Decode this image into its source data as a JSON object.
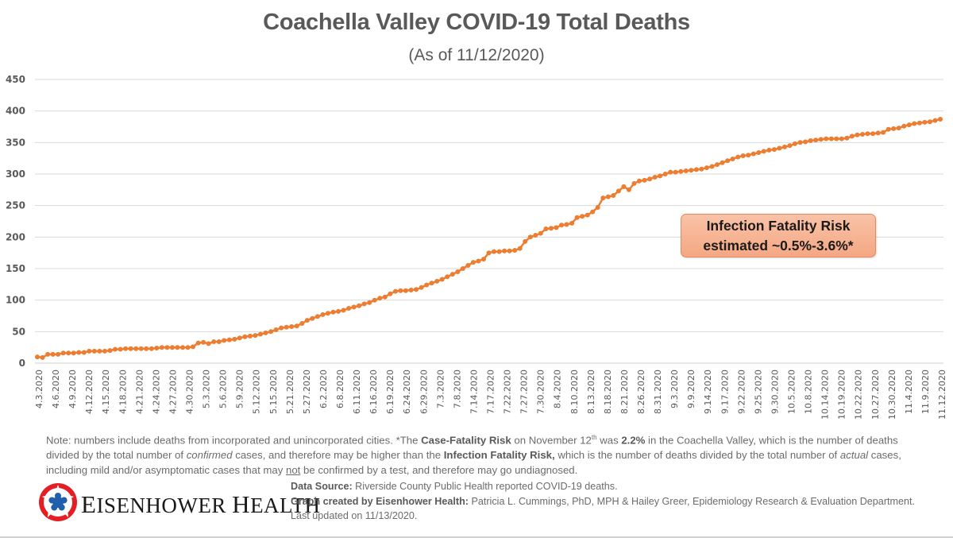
{
  "title": "Coachella Valley COVID-19 Total Deaths",
  "subtitle": "(As of 11/12/2020)",
  "annotation": {
    "line1": "Infection Fatality Risk",
    "line2": "estimated ~0.5%-3.6%*"
  },
  "note": {
    "part1": "Note: numbers include deaths from incorporated and unincorporated cities. *The ",
    "cfr_label": "Case-Fatality Risk",
    "part2": " on November 12",
    "sup": "th",
    "part3": " was ",
    "cfr_value": "2.2%",
    "part4": " in the Coachella Valley, which is the number of deaths divided by the total number of ",
    "confirmed": "confirmed",
    "part5": " cases, and therefore may be higher than the ",
    "ifr_label": "Infection Fatality Risk,",
    "part6": " which is the number of deaths divided by the total number of ",
    "actual": "actual",
    "part7": " cases, including mild and/or asymptomatic cases that may ",
    "not": "not",
    "part8": " be confirmed by a test, and therefore may go undiagnosed."
  },
  "logo": {
    "name_first_letter": "E",
    "name_rest": "ISENHOWER ",
    "name_second_letter": "H",
    "name_rest2": "EALTH"
  },
  "source": {
    "label": "Data Source:",
    "text": " Riverside County Public Health reported COVID-19 deaths.",
    "credit_label": "Graph created by Eisenhower Health:",
    "credit_text": " Patricia L. Cummings, PhD, MPH & Hailey Greer, Epidemiology Research & Evaluation Department. Last updated on 11/13/2020."
  },
  "colors": {
    "series": "#ed7d31",
    "grid": "#d9d9d9",
    "text": "#595959"
  },
  "chart_data": {
    "type": "line",
    "title": "Coachella Valley COVID-19 Total Deaths",
    "subtitle": "(As of 11/12/2020)",
    "xlabel": "",
    "ylabel": "",
    "ylim": [
      0,
      450
    ],
    "yticks": [
      0,
      50,
      100,
      150,
      200,
      250,
      300,
      350,
      400,
      450
    ],
    "grid": true,
    "legend": "none",
    "x_tick_labels": [
      "4.3.2020",
      "4.6.2020",
      "4.9.2020",
      "4.12.2020",
      "4.15.2020",
      "4.18.2020",
      "4.21.2020",
      "4.24.2020",
      "4.27.2020",
      "4.30.2020",
      "5.3.2020",
      "5.6.2020",
      "5.9.2020",
      "5.12.2020",
      "5.15.2020",
      "5.21.2020",
      "5.27.2020",
      "6.2.2020",
      "6.8.2020",
      "6.11.2020",
      "6.16.2020",
      "6.19.2020",
      "6.24.2020",
      "6.29.2020",
      "7.3.2020",
      "7.8.2020",
      "7.14.2020",
      "7.17.2020",
      "7.22.2020",
      "7.27.2020",
      "7.30.2020",
      "8.4.2020",
      "8.10.2020",
      "8.13.2020",
      "8.18.2020",
      "8.21.2020",
      "8.26.2020",
      "8.31.2020",
      "9.3.2020",
      "9.9.2020",
      "9.14.2020",
      "9.17.2020",
      "9.22.2020",
      "9.25.2020",
      "9.30.2020",
      "10.5.2020",
      "10.8.2020",
      "10.14.2020",
      "10.19.2020",
      "10.22.2020",
      "10.27.2020",
      "10.30.2020",
      "11.4.2020",
      "11.9.2020",
      "11.12.2020"
    ],
    "series": [
      {
        "name": "Total Deaths",
        "values": [
          10,
          9,
          14,
          14,
          14,
          16,
          16,
          16,
          17,
          17,
          19,
          19,
          19,
          19,
          20,
          22,
          22,
          23,
          23,
          23,
          23,
          23,
          23,
          24,
          25,
          25,
          25,
          25,
          25,
          25,
          26,
          32,
          33,
          31,
          34,
          34,
          36,
          37,
          38,
          40,
          42,
          43,
          44,
          46,
          48,
          50,
          53,
          56,
          57,
          58,
          59,
          63,
          68,
          71,
          74,
          77,
          79,
          81,
          82,
          84,
          87,
          89,
          91,
          94,
          96,
          100,
          103,
          105,
          110,
          114,
          115,
          115,
          116,
          117,
          120,
          124,
          127,
          130,
          133,
          137,
          141,
          145,
          150,
          155,
          160,
          162,
          165,
          175,
          177,
          177,
          178,
          178,
          179,
          182,
          193,
          200,
          203,
          206,
          213,
          214,
          215,
          219,
          220,
          222,
          231,
          233,
          235,
          240,
          247,
          262,
          264,
          266,
          273,
          280,
          275,
          285,
          289,
          290,
          292,
          295,
          297,
          300,
          303,
          303,
          304,
          305,
          306,
          307,
          308,
          310,
          312,
          315,
          318,
          321,
          324,
          327,
          329,
          330,
          332,
          334,
          336,
          338,
          339,
          341,
          343,
          345,
          348,
          350,
          351,
          353,
          354,
          355,
          356,
          356,
          356,
          356,
          357,
          360,
          362,
          363,
          364,
          364,
          365,
          366,
          371,
          372,
          373,
          376,
          378,
          380,
          381,
          382,
          383,
          385,
          387
        ]
      }
    ]
  }
}
